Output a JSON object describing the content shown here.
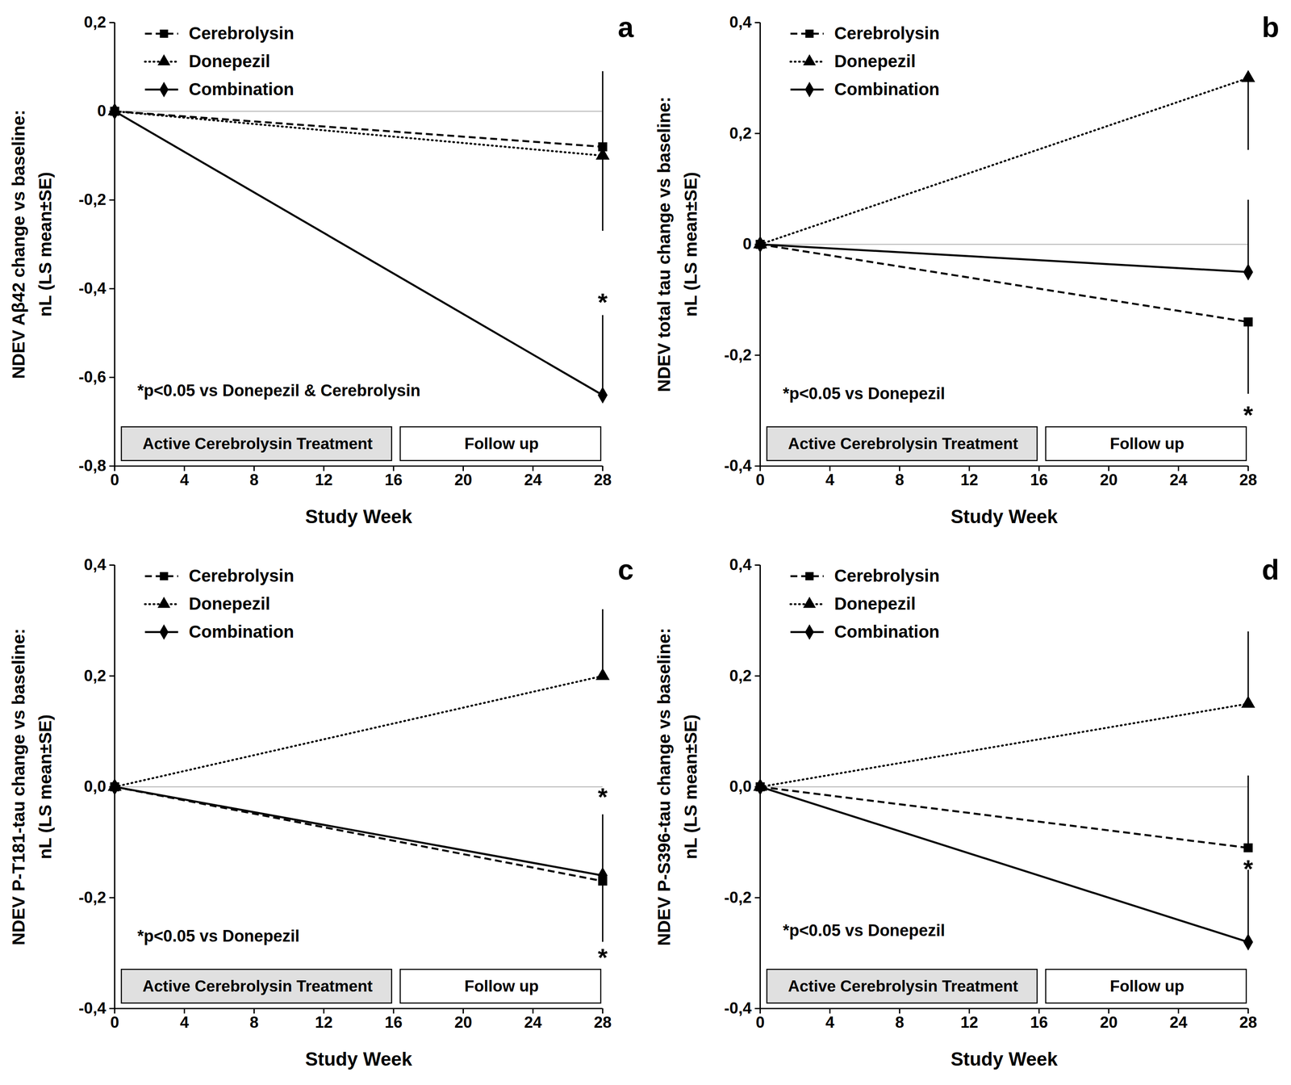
{
  "chart_data": [
    {
      "type": "line",
      "title": "a",
      "y_label": "NDEV Aβ42 change vs baseline:\nnL (LS mean±SE)",
      "x_label": "Study Week",
      "x": [
        0,
        28
      ],
      "xlim": [
        0,
        28
      ],
      "xticks": [
        0,
        4,
        8,
        12,
        16,
        20,
        24,
        28
      ],
      "ylim": [
        -0.8,
        0.2
      ],
      "yticks": [
        {
          "value": -0.8,
          "label": "-0,8"
        },
        {
          "value": -0.6,
          "label": "-0,6"
        },
        {
          "value": -0.4,
          "label": "-0,4"
        },
        {
          "value": -0.2,
          "label": "-0,2"
        },
        0,
        {
          "value": 0.2,
          "label": "0,2"
        }
      ],
      "baseline": 0,
      "legend": "top-left",
      "series": [
        {
          "name": "Cerebrolysin",
          "color": "#000000",
          "marker": "square",
          "line_style": "dashed",
          "values": [
            0,
            -0.08
          ],
          "error_up": [
            null,
            0.17
          ],
          "error_down": [
            null,
            null
          ]
        },
        {
          "name": "Donepezil",
          "color": "#000000",
          "marker": "triangle",
          "line_style": "dotted",
          "values": [
            0,
            -0.1
          ],
          "error_up": [
            null,
            null
          ],
          "error_down": [
            null,
            0.17
          ]
        },
        {
          "name": "Combination",
          "color": "#000000",
          "marker": "diamond",
          "line_style": "solid",
          "values": [
            0,
            -0.64
          ],
          "error_up": [
            null,
            0.18
          ],
          "error_down": [
            null,
            null
          ]
        }
      ],
      "annotations": [
        {
          "text": "*",
          "x": 28,
          "y": -0.42
        }
      ],
      "note": {
        "text": "*p<0.05 vs Donepezil & Cerebrolysin",
        "x": 1.3,
        "y": -0.63
      },
      "phases": [
        {
          "label": "Active Cerebrolysin Treatment",
          "start": 0,
          "end": 16,
          "color": "#e0e0e0"
        },
        {
          "label": "Follow up",
          "start": 16,
          "end": 28,
          "color": "#ffffff"
        }
      ]
    },
    {
      "type": "line",
      "title": "b",
      "y_label": "NDEV total tau change vs baseline:\nnL (LS mean±SE)",
      "x_label": "Study Week",
      "x": [
        0,
        28
      ],
      "xlim": [
        0,
        28
      ],
      "xticks": [
        0,
        4,
        8,
        12,
        16,
        20,
        24,
        28
      ],
      "ylim": [
        -0.4,
        0.4
      ],
      "yticks": [
        {
          "value": -0.4,
          "label": "-0,4"
        },
        {
          "value": -0.2,
          "label": "-0,2"
        },
        0,
        {
          "value": 0.2,
          "label": "0,2"
        },
        {
          "value": 0.4,
          "label": "0,4"
        }
      ],
      "baseline": 0,
      "legend": "top-left",
      "series": [
        {
          "name": "Cerebrolysin",
          "color": "#000000",
          "marker": "square",
          "line_style": "dashed",
          "values": [
            0,
            -0.14
          ],
          "error_up": [
            null,
            null
          ],
          "error_down": [
            null,
            0.13
          ]
        },
        {
          "name": "Donepezil",
          "color": "#000000",
          "marker": "triangle",
          "line_style": "dotted",
          "values": [
            0,
            0.3
          ],
          "error_up": [
            null,
            null
          ],
          "error_down": [
            null,
            0.13
          ]
        },
        {
          "name": "Combination",
          "color": "#000000",
          "marker": "diamond",
          "line_style": "solid",
          "values": [
            0,
            -0.05
          ],
          "error_up": [
            null,
            0.13
          ],
          "error_down": [
            null,
            null
          ]
        }
      ],
      "annotations": [
        {
          "text": "*",
          "x": 28,
          "y": -0.3
        }
      ],
      "note": {
        "text": "*p<0.05 vs Donepezil",
        "x": 1.3,
        "y": -0.27
      },
      "phases": [
        {
          "label": "Active Cerebrolysin Treatment",
          "start": 0,
          "end": 16,
          "color": "#e0e0e0"
        },
        {
          "label": "Follow up",
          "start": 16,
          "end": 28,
          "color": "#ffffff"
        }
      ]
    },
    {
      "type": "line",
      "title": "c",
      "y_label": "NDEV P-T181-tau change vs baseline:\nnL (LS mean±SE)",
      "x_label": "Study Week",
      "x": [
        0,
        28
      ],
      "xlim": [
        0,
        28
      ],
      "xticks": [
        0,
        4,
        8,
        12,
        16,
        20,
        24,
        28
      ],
      "ylim": [
        -0.4,
        0.4
      ],
      "yticks": [
        {
          "value": -0.4,
          "label": "-0,4"
        },
        {
          "value": -0.2,
          "label": "-0,2"
        },
        {
          "value": 0,
          "label": "0,0"
        },
        {
          "value": 0.2,
          "label": "0,2"
        },
        {
          "value": 0.4,
          "label": "0,4"
        }
      ],
      "baseline": 0,
      "legend": "top-left",
      "series": [
        {
          "name": "Cerebrolysin",
          "color": "#000000",
          "marker": "square",
          "line_style": "dashed",
          "values": [
            0,
            -0.17
          ],
          "error_up": [
            null,
            null
          ],
          "error_down": [
            null,
            0.11
          ]
        },
        {
          "name": "Donepezil",
          "color": "#000000",
          "marker": "triangle",
          "line_style": "dotted",
          "values": [
            0,
            0.2
          ],
          "error_up": [
            null,
            0.12
          ],
          "error_down": [
            null,
            null
          ]
        },
        {
          "name": "Combination",
          "color": "#000000",
          "marker": "diamond",
          "line_style": "solid",
          "values": [
            0,
            -0.16
          ],
          "error_up": [
            null,
            0.11
          ],
          "error_down": [
            null,
            null
          ]
        }
      ],
      "annotations": [
        {
          "text": "*",
          "x": 28,
          "y": -0.01
        },
        {
          "text": "*",
          "x": 28,
          "y": -0.3
        }
      ],
      "note": {
        "text": "*p<0.05 vs Donepezil",
        "x": 1.3,
        "y": -0.27
      },
      "phases": [
        {
          "label": "Active Cerebrolysin Treatment",
          "start": 0,
          "end": 16,
          "color": "#e0e0e0"
        },
        {
          "label": "Follow up",
          "start": 16,
          "end": 28,
          "color": "#ffffff"
        }
      ]
    },
    {
      "type": "line",
      "title": "d",
      "y_label": "NDEV P-S396-tau change vs baseline:\nnL (LS mean±SE)",
      "x_label": "Study Week",
      "x": [
        0,
        28
      ],
      "xlim": [
        0,
        28
      ],
      "xticks": [
        0,
        4,
        8,
        12,
        16,
        20,
        24,
        28
      ],
      "ylim": [
        -0.4,
        0.4
      ],
      "yticks": [
        {
          "value": -0.4,
          "label": "-0,4"
        },
        {
          "value": -0.2,
          "label": "-0,2"
        },
        {
          "value": 0,
          "label": "0,0"
        },
        {
          "value": 0.2,
          "label": "0,2"
        },
        {
          "value": 0.4,
          "label": "0,4"
        }
      ],
      "baseline": 0,
      "legend": "top-left",
      "series": [
        {
          "name": "Cerebrolysin",
          "color": "#000000",
          "marker": "square",
          "line_style": "dashed",
          "values": [
            0,
            -0.11
          ],
          "error_up": [
            null,
            0.13
          ],
          "error_down": [
            null,
            null
          ]
        },
        {
          "name": "Donepezil",
          "color": "#000000",
          "marker": "triangle",
          "line_style": "dotted",
          "values": [
            0,
            0.15
          ],
          "error_up": [
            null,
            0.13
          ],
          "error_down": [
            null,
            null
          ]
        },
        {
          "name": "Combination",
          "color": "#000000",
          "marker": "diamond",
          "line_style": "solid",
          "values": [
            0,
            -0.28
          ],
          "error_up": [
            null,
            0.13
          ],
          "error_down": [
            null,
            null
          ]
        }
      ],
      "annotations": [
        {
          "text": "*",
          "x": 28,
          "y": -0.14
        }
      ],
      "note": {
        "text": "*p<0.05 vs Donepezil",
        "x": 1.3,
        "y": -0.26
      },
      "phases": [
        {
          "label": "Active Cerebrolysin Treatment",
          "start": 0,
          "end": 16,
          "color": "#e0e0e0"
        },
        {
          "label": "Follow up",
          "start": 16,
          "end": 28,
          "color": "#ffffff"
        }
      ]
    }
  ]
}
